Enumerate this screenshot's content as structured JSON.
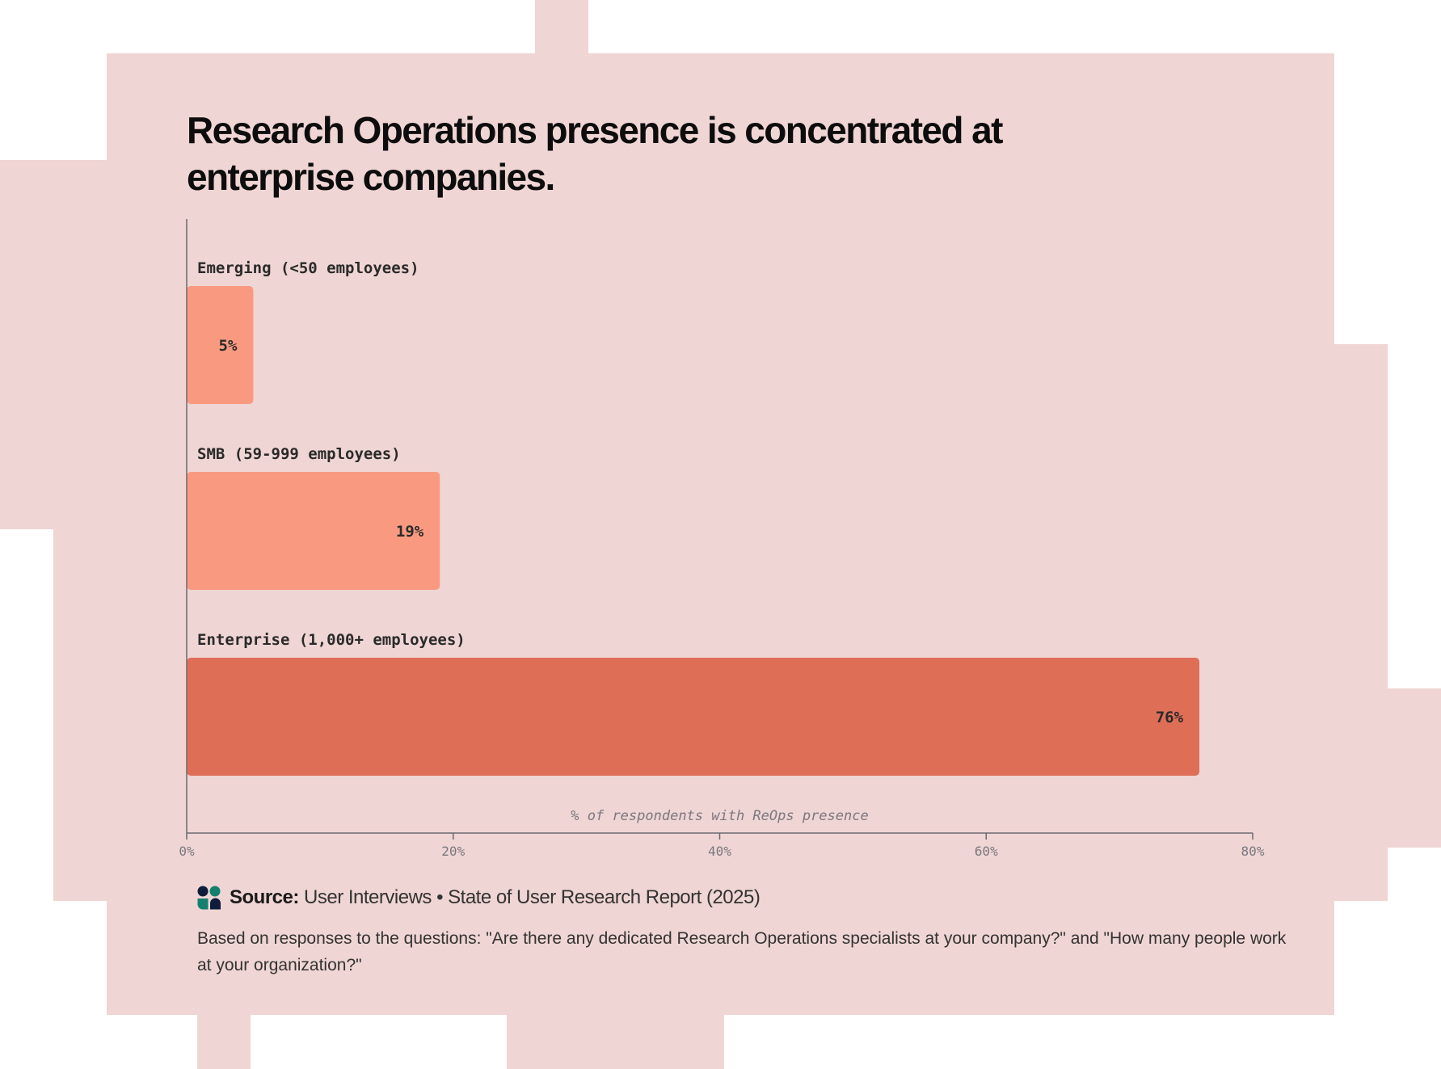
{
  "title": "Research Operations presence is concentrated at enterprise companies.",
  "colors": {
    "background": "#efd5d3",
    "bar_light": "#f99a80",
    "bar_highlight": "#df6e57",
    "axis": "#6b6a72"
  },
  "chart_data": {
    "type": "bar",
    "orientation": "horizontal",
    "title": "Research Operations presence is concentrated at enterprise companies.",
    "categories": [
      "Emerging (<50 employees)",
      "SMB (59-999 employees)",
      "Enterprise (1,000+ employees)"
    ],
    "values": [
      5,
      19,
      76
    ],
    "value_labels": [
      "5%",
      "19%",
      "76%"
    ],
    "xlabel": "% of respondents with ReOps presence",
    "xlim": [
      0,
      80
    ],
    "xticks": [
      "0%",
      "20%",
      "40%",
      "60%",
      "80%"
    ],
    "grid": false,
    "highlight": "Enterprise (1,000+ employees)"
  },
  "source": {
    "label": "Source:",
    "text": "User Interviews • State of User Research Report (2025)",
    "icon": "user-interviews-logo"
  },
  "note": "Based on responses to the questions: \"Are there any dedicated Research Operations specialists at your company?\" and \"How many people work at your organization?\""
}
